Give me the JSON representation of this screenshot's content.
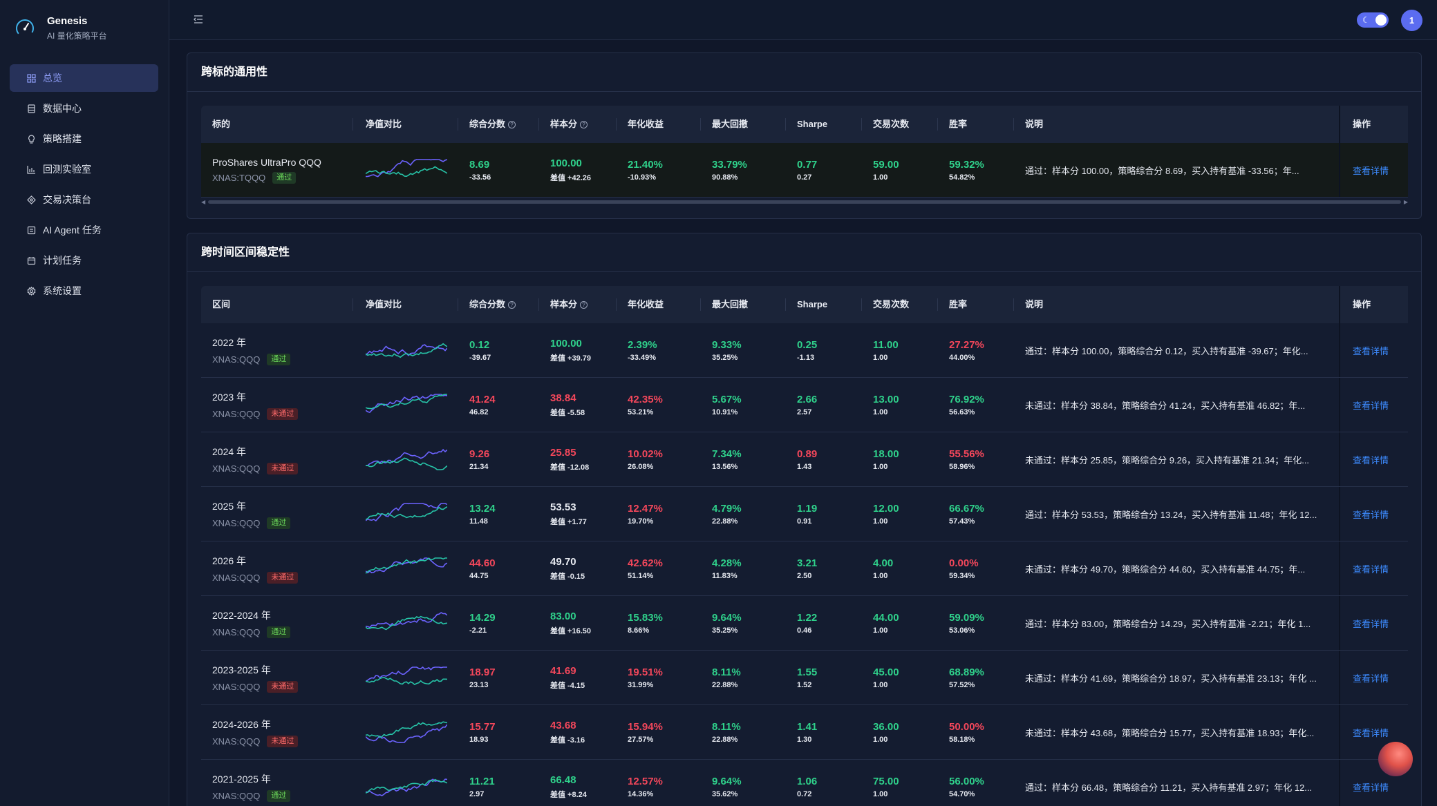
{
  "brand": {
    "title": "Genesis",
    "subtitle": "AI 量化策略平台"
  },
  "nav": [
    {
      "label": "总览",
      "icon": "grid-icon",
      "active": true
    },
    {
      "label": "数据中心",
      "icon": "database-icon",
      "active": false
    },
    {
      "label": "策略搭建",
      "icon": "lightbulb-icon",
      "active": false
    },
    {
      "label": "回测实验室",
      "icon": "bar-chart-icon",
      "active": false
    },
    {
      "label": "交易决策台",
      "icon": "target-icon",
      "active": false
    },
    {
      "label": "AI Agent 任务",
      "icon": "robot-icon",
      "active": false
    },
    {
      "label": "计划任务",
      "icon": "calendar-icon",
      "active": false
    },
    {
      "label": "系统设置",
      "icon": "gear-icon",
      "active": false
    }
  ],
  "header": {
    "avatar": "1"
  },
  "colors": {
    "accent": "#5b6cf0",
    "green": "#2fd18b",
    "red": "#f4475b",
    "link": "#3d8bff"
  },
  "section1": {
    "title": "跨标的通用性",
    "columns": [
      "标的",
      "净值对比",
      "综合分数",
      "样本分",
      "年化收益",
      "最大回撤",
      "Sharpe",
      "交易次数",
      "胜率",
      "说明",
      "操作"
    ],
    "rows": [
      {
        "name": "ProShares UltraPro QQQ",
        "code": "XNAS:TQQQ",
        "badge": "通过",
        "pass": true,
        "score": "8.69",
        "score_sub": "-33.56",
        "score_color": "green",
        "sample": "100.00",
        "sample_sub": "差值 +42.26",
        "sample_color": "green",
        "ann": "21.40%",
        "ann_sub": "-10.93%",
        "ann_color": "green",
        "dd": "33.79%",
        "dd_sub": "90.88%",
        "dd_color": "green",
        "sharpe": "0.77",
        "sharpe_sub": "0.27",
        "sharpe_color": "green",
        "trades": "59.00",
        "trades_sub": "1.00",
        "trades_color": "green",
        "win": "59.32%",
        "win_sub": "54.82%",
        "win_color": "green",
        "desc": "通过：样本分 100.00，策略综合分 8.69，买入持有基准 -33.56；年...",
        "action": "查看详情"
      }
    ]
  },
  "section2": {
    "title": "跨时间区间稳定性",
    "columns": [
      "区间",
      "净值对比",
      "综合分数",
      "样本分",
      "年化收益",
      "最大回撤",
      "Sharpe",
      "交易次数",
      "胜率",
      "说明",
      "操作"
    ],
    "rows": [
      {
        "name": "2022 年",
        "code": "XNAS:QQQ",
        "badge": "通过",
        "pass": true,
        "score": "0.12",
        "score_sub": "-39.67",
        "score_color": "green",
        "sample": "100.00",
        "sample_sub": "差值 +39.79",
        "sample_color": "green",
        "ann": "2.39%",
        "ann_sub": "-33.49%",
        "ann_color": "green",
        "dd": "9.33%",
        "dd_sub": "35.25%",
        "dd_color": "green",
        "sharpe": "0.25",
        "sharpe_sub": "-1.13",
        "sharpe_color": "green",
        "trades": "11.00",
        "trades_sub": "1.00",
        "trades_color": "green",
        "win": "27.27%",
        "win_sub": "44.00%",
        "win_color": "red",
        "desc": "通过：样本分 100.00，策略综合分 0.12，买入持有基准 -39.67；年化...",
        "action": "查看详情"
      },
      {
        "name": "2023 年",
        "code": "XNAS:QQQ",
        "badge": "未通过",
        "pass": false,
        "score": "41.24",
        "score_sub": "46.82",
        "score_color": "red",
        "sample": "38.84",
        "sample_sub": "差值 -5.58",
        "sample_color": "red",
        "ann": "42.35%",
        "ann_sub": "53.21%",
        "ann_color": "red",
        "dd": "5.67%",
        "dd_sub": "10.91%",
        "dd_color": "green",
        "sharpe": "2.66",
        "sharpe_sub": "2.57",
        "sharpe_color": "green",
        "trades": "13.00",
        "trades_sub": "1.00",
        "trades_color": "green",
        "win": "76.92%",
        "win_sub": "56.63%",
        "win_color": "green",
        "desc": "未通过：样本分 38.84，策略综合分 41.24，买入持有基准 46.82；年...",
        "action": "查看详情"
      },
      {
        "name": "2024 年",
        "code": "XNAS:QQQ",
        "badge": "未通过",
        "pass": false,
        "score": "9.26",
        "score_sub": "21.34",
        "score_color": "red",
        "sample": "25.85",
        "sample_sub": "差值 -12.08",
        "sample_color": "red",
        "ann": "10.02%",
        "ann_sub": "26.08%",
        "ann_color": "red",
        "dd": "7.34%",
        "dd_sub": "13.56%",
        "dd_color": "green",
        "sharpe": "0.89",
        "sharpe_sub": "1.43",
        "sharpe_color": "red",
        "trades": "18.00",
        "trades_sub": "1.00",
        "trades_color": "green",
        "win": "55.56%",
        "win_sub": "58.96%",
        "win_color": "red",
        "desc": "未通过：样本分 25.85，策略综合分 9.26，买入持有基准 21.34；年化...",
        "action": "查看详情"
      },
      {
        "name": "2025 年",
        "code": "XNAS:QQQ",
        "badge": "通过",
        "pass": true,
        "score": "13.24",
        "score_sub": "11.48",
        "score_color": "green",
        "sample": "53.53",
        "sample_sub": "差值 +1.77",
        "sample_color": "white",
        "ann": "12.47%",
        "ann_sub": "19.70%",
        "ann_color": "red",
        "dd": "4.79%",
        "dd_sub": "22.88%",
        "dd_color": "green",
        "sharpe": "1.19",
        "sharpe_sub": "0.91",
        "sharpe_color": "green",
        "trades": "12.00",
        "trades_sub": "1.00",
        "trades_color": "green",
        "win": "66.67%",
        "win_sub": "57.43%",
        "win_color": "green",
        "desc": "通过：样本分 53.53，策略综合分 13.24，买入持有基准 11.48；年化 12...",
        "action": "查看详情"
      },
      {
        "name": "2026 年",
        "code": "XNAS:QQQ",
        "badge": "未通过",
        "pass": false,
        "score": "44.60",
        "score_sub": "44.75",
        "score_color": "red",
        "sample": "49.70",
        "sample_sub": "差值 -0.15",
        "sample_color": "white",
        "ann": "42.62%",
        "ann_sub": "51.14%",
        "ann_color": "red",
        "dd": "4.28%",
        "dd_sub": "11.83%",
        "dd_color": "green",
        "sharpe": "3.21",
        "sharpe_sub": "2.50",
        "sharpe_color": "green",
        "trades": "4.00",
        "trades_sub": "1.00",
        "trades_color": "green",
        "win": "0.00%",
        "win_sub": "59.34%",
        "win_color": "red",
        "desc": "未通过：样本分 49.70，策略综合分 44.60，买入持有基准 44.75；年...",
        "action": "查看详情"
      },
      {
        "name": "2022-2024 年",
        "code": "XNAS:QQQ",
        "badge": "通过",
        "pass": true,
        "score": "14.29",
        "score_sub": "-2.21",
        "score_color": "green",
        "sample": "83.00",
        "sample_sub": "差值 +16.50",
        "sample_color": "green",
        "ann": "15.83%",
        "ann_sub": "8.66%",
        "ann_color": "green",
        "dd": "9.64%",
        "dd_sub": "35.25%",
        "dd_color": "green",
        "sharpe": "1.22",
        "sharpe_sub": "0.46",
        "sharpe_color": "green",
        "trades": "44.00",
        "trades_sub": "1.00",
        "trades_color": "green",
        "win": "59.09%",
        "win_sub": "53.06%",
        "win_color": "green",
        "desc": "通过：样本分 83.00，策略综合分 14.29，买入持有基准 -2.21；年化 1...",
        "action": "查看详情"
      },
      {
        "name": "2023-2025 年",
        "code": "XNAS:QQQ",
        "badge": "未通过",
        "pass": false,
        "score": "18.97",
        "score_sub": "23.13",
        "score_color": "red",
        "sample": "41.69",
        "sample_sub": "差值 -4.15",
        "sample_color": "red",
        "ann": "19.51%",
        "ann_sub": "31.99%",
        "ann_color": "red",
        "dd": "8.11%",
        "dd_sub": "22.88%",
        "dd_color": "green",
        "sharpe": "1.55",
        "sharpe_sub": "1.52",
        "sharpe_color": "green",
        "trades": "45.00",
        "trades_sub": "1.00",
        "trades_color": "green",
        "win": "68.89%",
        "win_sub": "57.52%",
        "win_color": "green",
        "desc": "未通过：样本分 41.69，策略综合分 18.97，买入持有基准 23.13；年化 ...",
        "action": "查看详情"
      },
      {
        "name": "2024-2026 年",
        "code": "XNAS:QQQ",
        "badge": "未通过",
        "pass": false,
        "score": "15.77",
        "score_sub": "18.93",
        "score_color": "red",
        "sample": "43.68",
        "sample_sub": "差值 -3.16",
        "sample_color": "red",
        "ann": "15.94%",
        "ann_sub": "27.57%",
        "ann_color": "red",
        "dd": "8.11%",
        "dd_sub": "22.88%",
        "dd_color": "green",
        "sharpe": "1.41",
        "sharpe_sub": "1.30",
        "sharpe_color": "green",
        "trades": "36.00",
        "trades_sub": "1.00",
        "trades_color": "green",
        "win": "50.00%",
        "win_sub": "58.18%",
        "win_color": "red",
        "desc": "未通过：样本分 43.68，策略综合分 15.77，买入持有基准 18.93；年化...",
        "action": "查看详情"
      },
      {
        "name": "2021-2025 年",
        "code": "XNAS:QQQ",
        "badge": "通过",
        "pass": true,
        "score": "11.21",
        "score_sub": "2.97",
        "score_color": "green",
        "sample": "66.48",
        "sample_sub": "差值 +8.24",
        "sample_color": "green",
        "ann": "12.57%",
        "ann_sub": "14.36%",
        "ann_color": "red",
        "dd": "9.64%",
        "dd_sub": "35.62%",
        "dd_color": "green",
        "sharpe": "1.06",
        "sharpe_sub": "0.72",
        "sharpe_color": "green",
        "trades": "75.00",
        "trades_sub": "1.00",
        "trades_color": "green",
        "win": "56.00%",
        "win_sub": "54.70%",
        "win_color": "green",
        "desc": "通过：样本分 66.48，策略综合分 11.21，买入持有基准 2.97；年化 12...",
        "action": "查看详情"
      }
    ]
  }
}
